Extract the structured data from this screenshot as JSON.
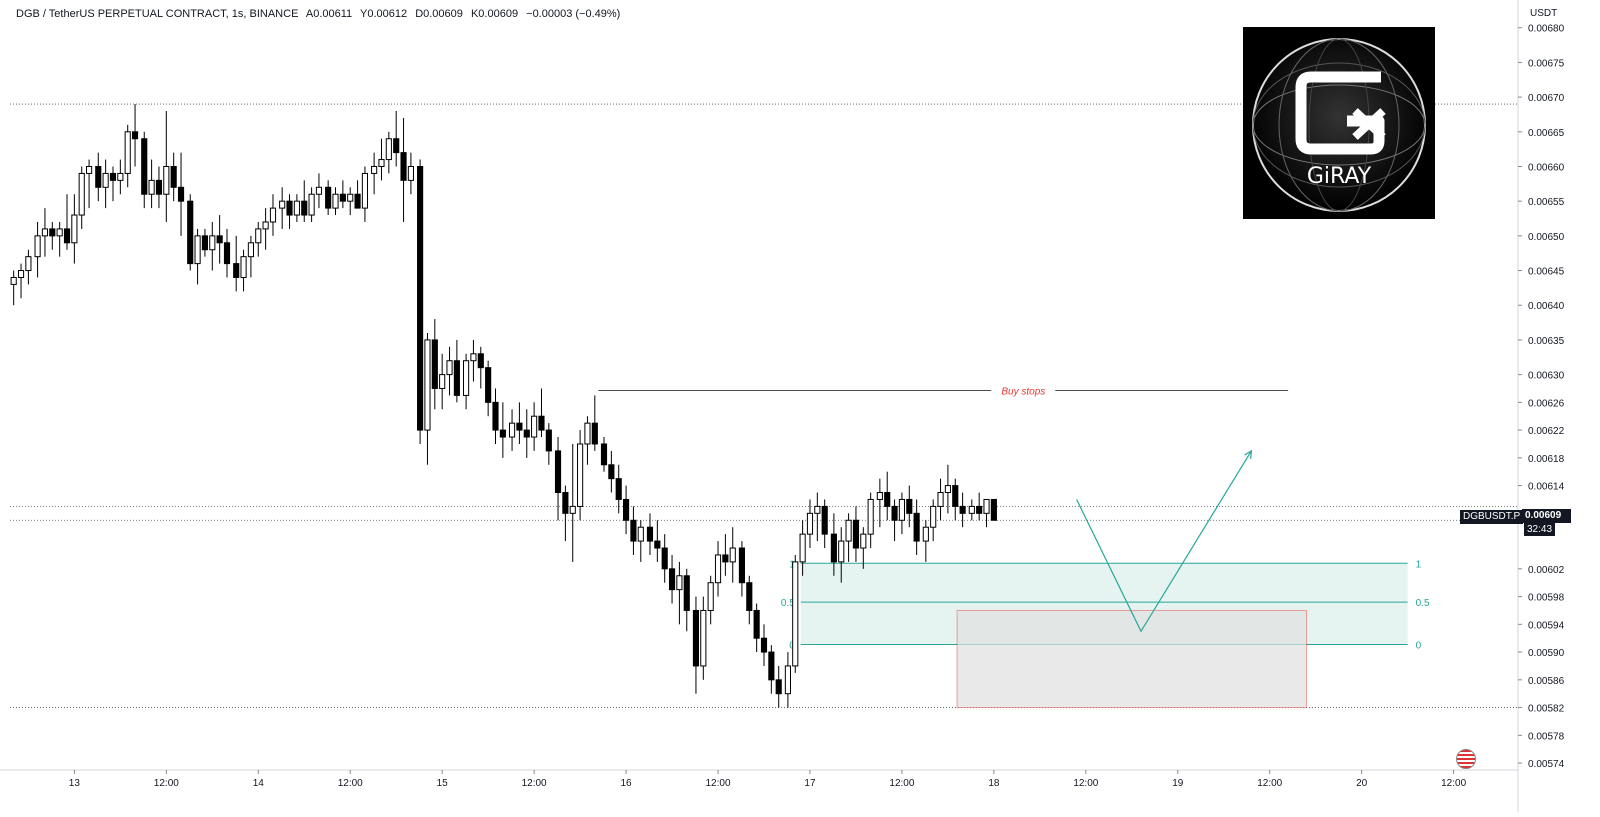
{
  "header": {
    "symbol": "DGB / TetherUS PERPETUAL CONTRACT, 1s, BINANCE",
    "open": "A0.00611",
    "high": "Y0.00612",
    "low": "D0.00609",
    "close": "K0.00609",
    "change": "−0.00003 (−0.49%)"
  },
  "axis": {
    "currency": "USDT",
    "y_ticks": [
      "0.00680",
      "0.00675",
      "0.00670",
      "0.00665",
      "0.00660",
      "0.00655",
      "0.00650",
      "0.00645",
      "0.00640",
      "0.00635",
      "0.00630",
      "0.00626",
      "0.00622",
      "0.00618",
      "0.00614",
      "0.00602",
      "0.00598",
      "0.00594",
      "0.00590",
      "0.00586",
      "0.00582",
      "0.00578",
      "0.00574"
    ],
    "x_ticks": [
      "13",
      "12:00",
      "14",
      "12:00",
      "15",
      "12:00",
      "16",
      "12:00",
      "17",
      "12:00",
      "18",
      "12:00",
      "19",
      "12:00",
      "20",
      "12:00"
    ]
  },
  "current_price": {
    "symbol": "DGBUSDT.P",
    "price": "0.00609",
    "countdown": "32:43"
  },
  "annotations": {
    "buy_stops": "Buy stops",
    "fib_1": "1",
    "fib_05": "0.5",
    "fib_0": "0"
  },
  "logo": {
    "text": "GiRAY"
  },
  "colors": {
    "up_candle": "#ffffff",
    "down_candle": "#000000",
    "teal": "#26a69a",
    "zone_fill": "#e6f4f1",
    "red": "#e53935",
    "grey_zone": "#e0e0e0"
  },
  "chart_data": {
    "type": "candlestick",
    "title": "DGB / TetherUS PERPETUAL CONTRACT, 1s, BINANCE",
    "ylabel": "USDT",
    "ylim": [
      0.00573,
      0.00684
    ],
    "x_range": [
      -0.35,
      7.85
    ],
    "levels": {
      "dotted_high": 0.00669,
      "dotted_mid": 0.00611,
      "dotted_current": 0.00609,
      "dotted_low": 0.00582
    },
    "buy_stops_line": {
      "price": 0.006277,
      "from_x": 2.85,
      "to_x": 6.6
    },
    "fib_zone": {
      "level_1": 0.006028,
      "level_05": 0.005972,
      "level_0": 0.005911,
      "from_x": 3.95,
      "to_x": 7.25
    },
    "grey_box": {
      "top": 0.00596,
      "bottom": 0.00582,
      "from_x": 4.8,
      "to_x": 6.7
    },
    "projection_path": [
      [
        5.45,
        0.00612
      ],
      [
        5.8,
        0.00593
      ],
      [
        6.4,
        0.00619
      ]
    ],
    "candles": [
      [
        -0.33,
        0.00643,
        0.00645,
        0.0064,
        0.00644
      ],
      [
        -0.29,
        0.00644,
        0.00646,
        0.00641,
        0.00645
      ],
      [
        -0.25,
        0.00645,
        0.00648,
        0.00643,
        0.00647
      ],
      [
        -0.2,
        0.00647,
        0.00652,
        0.00644,
        0.0065
      ],
      [
        -0.16,
        0.0065,
        0.00654,
        0.00647,
        0.00651
      ],
      [
        -0.12,
        0.00651,
        0.00652,
        0.00648,
        0.0065
      ],
      [
        -0.08,
        0.0065,
        0.00652,
        0.00647,
        0.00651
      ],
      [
        -0.04,
        0.00651,
        0.00656,
        0.00648,
        0.00649
      ],
      [
        0.0,
        0.00649,
        0.00656,
        0.00646,
        0.00653
      ],
      [
        0.04,
        0.00653,
        0.0066,
        0.00651,
        0.00659
      ],
      [
        0.08,
        0.00659,
        0.00661,
        0.00654,
        0.0066
      ],
      [
        0.13,
        0.0066,
        0.00662,
        0.00655,
        0.00657
      ],
      [
        0.17,
        0.00657,
        0.00661,
        0.00654,
        0.00659
      ],
      [
        0.21,
        0.00659,
        0.0066,
        0.00655,
        0.00658
      ],
      [
        0.25,
        0.00658,
        0.00661,
        0.00656,
        0.00659
      ],
      [
        0.29,
        0.00659,
        0.00666,
        0.00657,
        0.00665
      ],
      [
        0.33,
        0.00665,
        0.00669,
        0.0066,
        0.00664
      ],
      [
        0.38,
        0.00664,
        0.00665,
        0.00654,
        0.00656
      ],
      [
        0.42,
        0.00656,
        0.00661,
        0.00654,
        0.00658
      ],
      [
        0.46,
        0.00658,
        0.0066,
        0.00654,
        0.00656
      ],
      [
        0.5,
        0.00656,
        0.00668,
        0.00652,
        0.0066
      ],
      [
        0.54,
        0.0066,
        0.00662,
        0.00655,
        0.00657
      ],
      [
        0.58,
        0.00657,
        0.00662,
        0.0065,
        0.00655
      ],
      [
        0.63,
        0.00655,
        0.00656,
        0.00645,
        0.00646
      ],
      [
        0.67,
        0.00646,
        0.00651,
        0.00643,
        0.0065
      ],
      [
        0.71,
        0.0065,
        0.00651,
        0.00647,
        0.00648
      ],
      [
        0.75,
        0.00648,
        0.00652,
        0.00645,
        0.0065
      ],
      [
        0.79,
        0.0065,
        0.00653,
        0.00646,
        0.00649
      ],
      [
        0.83,
        0.00649,
        0.00651,
        0.00644,
        0.00646
      ],
      [
        0.88,
        0.00646,
        0.0065,
        0.00642,
        0.00644
      ],
      [
        0.92,
        0.00644,
        0.00648,
        0.00642,
        0.00647
      ],
      [
        0.96,
        0.00647,
        0.0065,
        0.00644,
        0.00649
      ],
      [
        1.0,
        0.00649,
        0.00652,
        0.00647,
        0.00651
      ],
      [
        1.04,
        0.00651,
        0.00654,
        0.00648,
        0.00652
      ],
      [
        1.08,
        0.00652,
        0.00656,
        0.0065,
        0.00654
      ],
      [
        1.13,
        0.00654,
        0.00657,
        0.00651,
        0.00655
      ],
      [
        1.17,
        0.00655,
        0.00656,
        0.00651,
        0.00653
      ],
      [
        1.21,
        0.00653,
        0.00656,
        0.00652,
        0.00655
      ],
      [
        1.25,
        0.00655,
        0.00658,
        0.00652,
        0.00653
      ],
      [
        1.29,
        0.00653,
        0.00657,
        0.00652,
        0.00656
      ],
      [
        1.33,
        0.00656,
        0.00659,
        0.00654,
        0.00657
      ],
      [
        1.38,
        0.00657,
        0.00658,
        0.00653,
        0.00654
      ],
      [
        1.42,
        0.00654,
        0.00657,
        0.00653,
        0.00656
      ],
      [
        1.46,
        0.00656,
        0.00658,
        0.00654,
        0.00655
      ],
      [
        1.5,
        0.00655,
        0.00657,
        0.00653,
        0.00656
      ],
      [
        1.54,
        0.00656,
        0.00658,
        0.00654,
        0.00654
      ],
      [
        1.58,
        0.00654,
        0.0066,
        0.00652,
        0.00659
      ],
      [
        1.63,
        0.00659,
        0.00662,
        0.00656,
        0.0066
      ],
      [
        1.67,
        0.0066,
        0.00664,
        0.00658,
        0.00661
      ],
      [
        1.71,
        0.00661,
        0.00665,
        0.00659,
        0.00664
      ],
      [
        1.75,
        0.00664,
        0.00668,
        0.0066,
        0.00662
      ],
      [
        1.79,
        0.00662,
        0.00667,
        0.00652,
        0.00658
      ],
      [
        1.83,
        0.00658,
        0.00662,
        0.00656,
        0.0066
      ],
      [
        1.88,
        0.0066,
        0.00661,
        0.0062,
        0.00622
      ],
      [
        1.92,
        0.00622,
        0.00636,
        0.00617,
        0.00635
      ],
      [
        1.96,
        0.00635,
        0.00638,
        0.00625,
        0.00628
      ],
      [
        2.0,
        0.00628,
        0.00633,
        0.00625,
        0.0063
      ],
      [
        2.04,
        0.0063,
        0.00634,
        0.00627,
        0.00632
      ],
      [
        2.08,
        0.00632,
        0.00635,
        0.00626,
        0.00627
      ],
      [
        2.13,
        0.00627,
        0.00633,
        0.00625,
        0.00632
      ],
      [
        2.17,
        0.00632,
        0.00635,
        0.00629,
        0.00633
      ],
      [
        2.21,
        0.00633,
        0.00634,
        0.00628,
        0.00631
      ],
      [
        2.25,
        0.00631,
        0.00632,
        0.00624,
        0.00626
      ],
      [
        2.29,
        0.00626,
        0.00628,
        0.0062,
        0.00622
      ],
      [
        2.33,
        0.00622,
        0.00626,
        0.00618,
        0.00621
      ],
      [
        2.38,
        0.00621,
        0.00625,
        0.00619,
        0.00623
      ],
      [
        2.42,
        0.00623,
        0.00626,
        0.0062,
        0.00622
      ],
      [
        2.46,
        0.00622,
        0.00625,
        0.00618,
        0.00621
      ],
      [
        2.5,
        0.00621,
        0.00626,
        0.00619,
        0.00624
      ],
      [
        2.54,
        0.00624,
        0.00628,
        0.00621,
        0.00622
      ],
      [
        2.58,
        0.00622,
        0.00623,
        0.00617,
        0.00619
      ],
      [
        2.63,
        0.00619,
        0.00621,
        0.00609,
        0.00613
      ],
      [
        2.67,
        0.00613,
        0.00614,
        0.00606,
        0.0061
      ],
      [
        2.71,
        0.0061,
        0.0062,
        0.00603,
        0.00611
      ],
      [
        2.75,
        0.00611,
        0.00622,
        0.00609,
        0.0062
      ],
      [
        2.79,
        0.0062,
        0.00624,
        0.00617,
        0.00623
      ],
      [
        2.83,
        0.00623,
        0.00627,
        0.00619,
        0.0062
      ],
      [
        2.88,
        0.0062,
        0.00621,
        0.00616,
        0.00617
      ],
      [
        2.92,
        0.00617,
        0.00619,
        0.00613,
        0.00615
      ],
      [
        2.96,
        0.00615,
        0.00617,
        0.0061,
        0.00612
      ],
      [
        3.0,
        0.00612,
        0.00614,
        0.00607,
        0.00609
      ],
      [
        3.04,
        0.00609,
        0.00611,
        0.00604,
        0.00606
      ],
      [
        3.08,
        0.00606,
        0.00609,
        0.00603,
        0.00608
      ],
      [
        3.13,
        0.00608,
        0.0061,
        0.00604,
        0.00606
      ],
      [
        3.17,
        0.00606,
        0.00609,
        0.00603,
        0.00605
      ],
      [
        3.21,
        0.00605,
        0.00607,
        0.006,
        0.00602
      ],
      [
        3.25,
        0.00602,
        0.00604,
        0.00597,
        0.00599
      ],
      [
        3.29,
        0.00599,
        0.00603,
        0.00594,
        0.00601
      ],
      [
        3.33,
        0.00601,
        0.00602,
        0.00593,
        0.00596
      ],
      [
        3.38,
        0.00596,
        0.00598,
        0.00584,
        0.00588
      ],
      [
        3.42,
        0.00588,
        0.00598,
        0.00586,
        0.00596
      ],
      [
        3.46,
        0.00596,
        0.00601,
        0.00594,
        0.006
      ],
      [
        3.5,
        0.006,
        0.00606,
        0.00598,
        0.00604
      ],
      [
        3.54,
        0.00604,
        0.00607,
        0.00601,
        0.00603
      ],
      [
        3.58,
        0.00603,
        0.00608,
        0.006,
        0.00605
      ],
      [
        3.63,
        0.00605,
        0.00606,
        0.00598,
        0.006
      ],
      [
        3.67,
        0.006,
        0.00601,
        0.00594,
        0.00596
      ],
      [
        3.71,
        0.00596,
        0.00597,
        0.0059,
        0.00592
      ],
      [
        3.75,
        0.00592,
        0.00594,
        0.00588,
        0.0059
      ],
      [
        3.79,
        0.0059,
        0.00591,
        0.00584,
        0.00586
      ],
      [
        3.83,
        0.00586,
        0.00588,
        0.00582,
        0.00584
      ],
      [
        3.88,
        0.00584,
        0.0059,
        0.00582,
        0.00588
      ],
      [
        3.92,
        0.00588,
        0.00604,
        0.00587,
        0.00603
      ],
      [
        3.96,
        0.00603,
        0.00609,
        0.00601,
        0.00607
      ],
      [
        4.0,
        0.00607,
        0.00612,
        0.00605,
        0.0061
      ],
      [
        4.04,
        0.0061,
        0.00613,
        0.00606,
        0.00611
      ],
      [
        4.08,
        0.00611,
        0.00612,
        0.00605,
        0.00607
      ],
      [
        4.13,
        0.00607,
        0.0061,
        0.00601,
        0.00603
      ],
      [
        4.17,
        0.00603,
        0.00608,
        0.006,
        0.00606
      ],
      [
        4.21,
        0.00606,
        0.0061,
        0.00603,
        0.00609
      ],
      [
        4.25,
        0.00609,
        0.00611,
        0.00603,
        0.00605
      ],
      [
        4.29,
        0.00605,
        0.00608,
        0.00602,
        0.00607
      ],
      [
        4.33,
        0.00607,
        0.00613,
        0.00605,
        0.00612
      ],
      [
        4.38,
        0.00612,
        0.00615,
        0.00608,
        0.00613
      ],
      [
        4.42,
        0.00613,
        0.00616,
        0.00609,
        0.00611
      ],
      [
        4.46,
        0.00611,
        0.00612,
        0.00606,
        0.00609
      ],
      [
        4.5,
        0.00609,
        0.00613,
        0.00607,
        0.00612
      ],
      [
        4.54,
        0.00612,
        0.00614,
        0.00608,
        0.0061
      ],
      [
        4.58,
        0.0061,
        0.00612,
        0.00604,
        0.00606
      ],
      [
        4.63,
        0.00606,
        0.00609,
        0.00603,
        0.00608
      ],
      [
        4.67,
        0.00608,
        0.00612,
        0.00606,
        0.00611
      ],
      [
        4.71,
        0.00611,
        0.00615,
        0.00609,
        0.00613
      ],
      [
        4.75,
        0.00613,
        0.00617,
        0.0061,
        0.00614
      ],
      [
        4.79,
        0.00614,
        0.00615,
        0.00609,
        0.00611
      ],
      [
        4.83,
        0.00611,
        0.00613,
        0.00608,
        0.0061
      ],
      [
        4.88,
        0.0061,
        0.00612,
        0.00609,
        0.00611
      ],
      [
        4.92,
        0.00611,
        0.00613,
        0.00609,
        0.0061
      ],
      [
        4.96,
        0.0061,
        0.00612,
        0.00608,
        0.00612
      ],
      [
        5.0,
        0.00612,
        0.00612,
        0.00609,
        0.00609
      ]
    ]
  }
}
